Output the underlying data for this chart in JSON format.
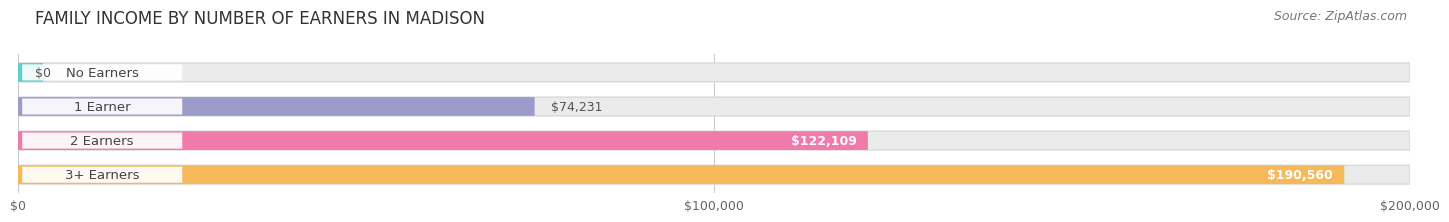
{
  "title": "FAMILY INCOME BY NUMBER OF EARNERS IN MADISON",
  "source": "Source: ZipAtlas.com",
  "categories": [
    "No Earners",
    "1 Earner",
    "2 Earners",
    "3+ Earners"
  ],
  "values": [
    0,
    74231,
    122109,
    190560
  ],
  "labels": [
    "$0",
    "$74,231",
    "$122,109",
    "$190,560"
  ],
  "bar_colors": [
    "#5ecece",
    "#9b9bcc",
    "#f07aaa",
    "#f5b85a"
  ],
  "label_in_bar": [
    false,
    false,
    true,
    true
  ],
  "xlim": [
    0,
    200000
  ],
  "xticks": [
    0,
    100000,
    200000
  ],
  "xticklabels": [
    "$0",
    "$100,000",
    "$200,000"
  ],
  "background_color": "#ffffff",
  "bar_bg_color": "#ebebeb",
  "bar_border_color": "#d8d8d8",
  "title_fontsize": 12,
  "source_fontsize": 9,
  "label_fontsize": 9,
  "category_fontsize": 9.5,
  "tick_fontsize": 9
}
